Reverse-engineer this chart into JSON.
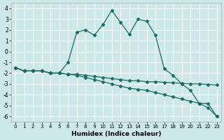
{
  "xlabel": "Humidex (Indice chaleur)",
  "xlim": [
    -0.5,
    23.5
  ],
  "ylim": [
    -6.5,
    4.5
  ],
  "yticks": [
    -6,
    -5,
    -4,
    -3,
    -2,
    -1,
    0,
    1,
    2,
    3,
    4
  ],
  "xticks": [
    0,
    1,
    2,
    3,
    4,
    5,
    6,
    7,
    8,
    9,
    10,
    11,
    12,
    13,
    14,
    15,
    16,
    17,
    18,
    19,
    20,
    21,
    22,
    23
  ],
  "bg_color": "#cce8e8",
  "grid_color": "#ffffff",
  "line_color": "#1a6b63",
  "lines": [
    {
      "x": [
        0,
        1,
        2,
        3,
        4,
        5,
        6,
        7,
        8,
        9,
        10,
        11,
        12,
        13,
        14,
        15,
        16,
        17,
        18,
        19,
        20,
        21,
        22,
        23
      ],
      "y": [
        -1.5,
        -1.8,
        -1.8,
        -1.8,
        -2.0,
        -2.0,
        -1.0,
        1.8,
        2.0,
        1.5,
        2.5,
        3.8,
        2.7,
        1.6,
        3.0,
        2.8,
        1.5,
        -1.6,
        -2.2,
        -3.0,
        -3.6,
        -4.8,
        -4.8,
        -6.0
      ]
    },
    {
      "x": [
        0,
        1,
        2,
        3,
        4,
        5,
        6,
        7,
        8,
        9,
        10,
        11,
        12,
        13,
        14,
        15,
        16,
        17,
        18,
        19,
        20,
        21,
        22,
        23
      ],
      "y": [
        -1.5,
        -1.8,
        -1.8,
        -1.8,
        -2.0,
        -2.0,
        -2.1,
        -2.1,
        -2.2,
        -2.3,
        -2.4,
        -2.5,
        -2.6,
        -2.7,
        -2.7,
        -2.8,
        -2.8,
        -2.85,
        -2.9,
        -2.95,
        -3.0,
        -3.0,
        -3.05,
        -3.1
      ]
    },
    {
      "x": [
        0,
        1,
        2,
        3,
        4,
        5,
        6,
        7,
        8,
        9,
        10,
        11,
        12,
        13,
        14,
        15,
        16,
        17,
        18,
        19,
        20,
        21,
        22,
        23
      ],
      "y": [
        -1.5,
        -1.8,
        -1.8,
        -1.8,
        -2.0,
        -2.0,
        -2.1,
        -2.2,
        -2.4,
        -2.6,
        -2.8,
        -3.0,
        -3.2,
        -3.4,
        -3.5,
        -3.6,
        -3.8,
        -4.0,
        -4.2,
        -4.4,
        -4.6,
        -4.8,
        -5.2,
        -6.0
      ]
    }
  ],
  "marker": "D",
  "markersize": 2.5
}
